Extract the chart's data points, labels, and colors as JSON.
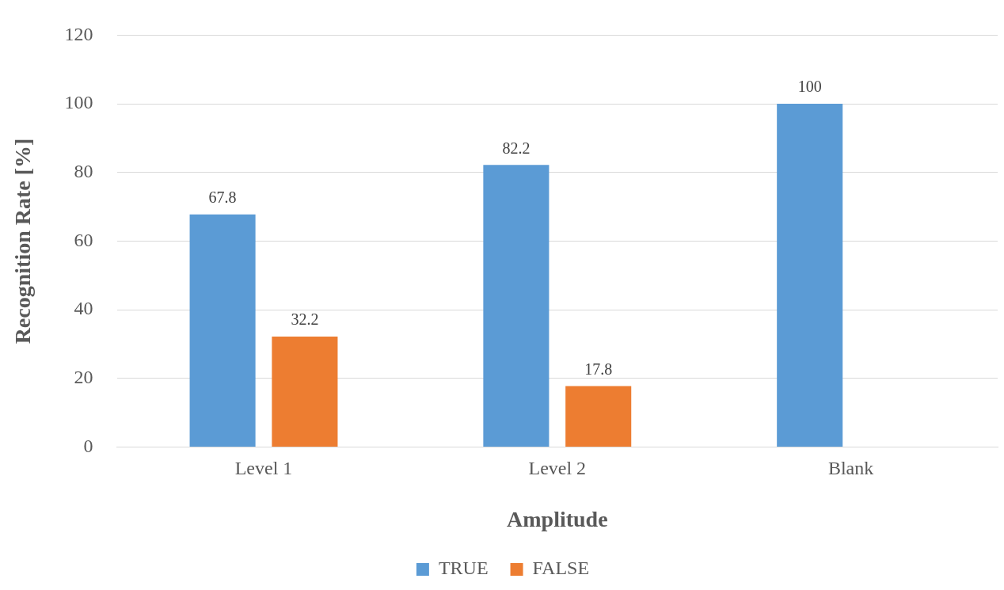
{
  "chart_data": {
    "type": "bar",
    "xlabel": "Amplitude",
    "ylabel": "Recognition Rate [%]",
    "categories": [
      "Level 1",
      "Level 2",
      "Blank"
    ],
    "series": [
      {
        "name": "TRUE",
        "color": "#5b9bd5",
        "values": [
          67.8,
          82.2,
          100
        ]
      },
      {
        "name": "FALSE",
        "color": "#ed7d31",
        "values": [
          32.2,
          17.8,
          null
        ]
      }
    ],
    "ylim": [
      0,
      120
    ],
    "yticks": [
      0,
      20,
      40,
      60,
      80,
      100,
      120
    ],
    "grid": "y",
    "legend": "bottom",
    "data_labels": true
  }
}
